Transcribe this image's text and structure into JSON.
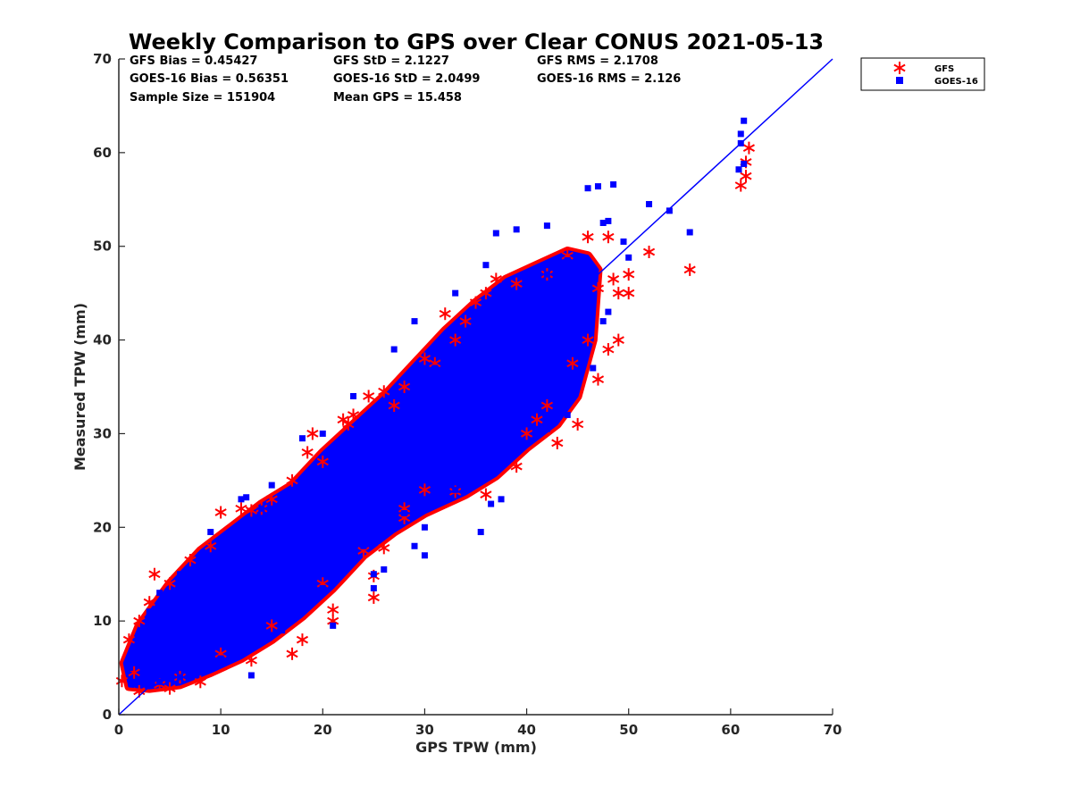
{
  "chart_data": {
    "type": "scatter",
    "title": "Weekly Comparison to GPS over Clear CONUS 2021-05-13",
    "xlabel": "GPS TPW (mm)",
    "ylabel": "Measured TPW (mm)",
    "xlim": [
      0,
      70
    ],
    "ylim": [
      0,
      70
    ],
    "xticks": [
      "0",
      "10",
      "20",
      "30",
      "40",
      "50",
      "60",
      "70"
    ],
    "yticks": [
      "0",
      "10",
      "20",
      "30",
      "40",
      "50",
      "60",
      "70"
    ],
    "grid": false,
    "legend_position": "outside top-right",
    "stats": [
      [
        "GFS Bias = 0.45427",
        "GFS StD = 2.1227",
        "GFS RMS = 2.1708"
      ],
      [
        "GOES-16 Bias = 0.56351",
        "GOES-16 StD = 2.0499",
        "GOES-16 RMS = 2.126"
      ],
      [
        "Sample Size = 151904",
        "Mean GPS = 15.458",
        ""
      ]
    ],
    "reference_line": {
      "name": "1:1",
      "x": [
        0,
        70
      ],
      "y": [
        0,
        70
      ],
      "color": "#0000ff"
    },
    "series": [
      {
        "name": "GFS",
        "marker": "asterisk",
        "color": "#ff0000",
        "points": [
          [
            0.3,
            3.6
          ],
          [
            3.5,
            15.0
          ],
          [
            10.0,
            21.6
          ],
          [
            12.0,
            22.0
          ],
          [
            13.0,
            21.8
          ],
          [
            14.0,
            22.0
          ],
          [
            18.5,
            28.0
          ],
          [
            19.0,
            30.0
          ],
          [
            22.0,
            31.5
          ],
          [
            22.5,
            31.0
          ],
          [
            23.0,
            32.0
          ],
          [
            24.5,
            34.0
          ],
          [
            26.0,
            34.5
          ],
          [
            30.0,
            38.0
          ],
          [
            32.0,
            42.8
          ],
          [
            34.0,
            42.0
          ],
          [
            36.0,
            45.0
          ],
          [
            37.0,
            46.5
          ],
          [
            46.0,
            51.0
          ],
          [
            48.0,
            51.0
          ],
          [
            52.0,
            49.4
          ],
          [
            50.0,
            45.0
          ],
          [
            50.0,
            47.0
          ],
          [
            49.0,
            40.0
          ],
          [
            48.0,
            39.0
          ],
          [
            47.0,
            35.8
          ],
          [
            45.0,
            31.0
          ],
          [
            43.0,
            29.0
          ],
          [
            39.0,
            26.5
          ],
          [
            36.0,
            23.5
          ],
          [
            33.0,
            23.8
          ],
          [
            28.0,
            22.0
          ],
          [
            26.0,
            17.8
          ],
          [
            25.0,
            14.8
          ],
          [
            25.0,
            12.5
          ],
          [
            21.0,
            11.2
          ],
          [
            21.0,
            10.0
          ],
          [
            18.0,
            8.0
          ],
          [
            17.0,
            6.5
          ],
          [
            13.0,
            5.8
          ],
          [
            8.0,
            3.5
          ],
          [
            5.0,
            2.8
          ],
          [
            2.0,
            2.5
          ],
          [
            56.0,
            47.5
          ],
          [
            61.0,
            56.5
          ],
          [
            61.5,
            57.5
          ],
          [
            61.8,
            60.5
          ],
          [
            61.5,
            59.0
          ],
          [
            47.0,
            45.5
          ],
          [
            48.5,
            46.5
          ],
          [
            49.0,
            45.0
          ],
          [
            46.0,
            40.0
          ],
          [
            44.5,
            37.5
          ],
          [
            42.0,
            33.0
          ],
          [
            41.0,
            31.5
          ],
          [
            40.0,
            30.0
          ],
          [
            30.0,
            24.0
          ],
          [
            28.0,
            21.0
          ],
          [
            24.0,
            17.5
          ],
          [
            20.0,
            14.0
          ],
          [
            15.0,
            9.5
          ],
          [
            10.0,
            6.5
          ],
          [
            6.0,
            4.0
          ],
          [
            4.0,
            3.2
          ],
          [
            1.5,
            4.5
          ],
          [
            1.0,
            8.0
          ],
          [
            2.0,
            10.0
          ],
          [
            3.0,
            12.0
          ],
          [
            5.0,
            14.0
          ],
          [
            7.0,
            16.5
          ],
          [
            9.0,
            18.0
          ],
          [
            15.0,
            23.0
          ],
          [
            17.0,
            25.0
          ],
          [
            20.0,
            27.0
          ],
          [
            27.0,
            33.0
          ],
          [
            28.0,
            35.0
          ],
          [
            31.0,
            37.5
          ],
          [
            33.0,
            40.0
          ],
          [
            35.0,
            44.0
          ],
          [
            39.0,
            46.0
          ],
          [
            42.0,
            47.0
          ],
          [
            44.0,
            49.0
          ]
        ]
      },
      {
        "name": "GOES-16",
        "marker": "square",
        "color": "#0000ff",
        "points": [
          [
            61.3,
            63.4
          ],
          [
            61.0,
            62.0
          ],
          [
            61.0,
            61.0
          ],
          [
            60.8,
            58.2
          ],
          [
            61.3,
            58.8
          ],
          [
            47.0,
            56.4
          ],
          [
            48.5,
            56.6
          ],
          [
            46.0,
            56.2
          ],
          [
            47.5,
            52.5
          ],
          [
            48.0,
            52.7
          ],
          [
            52.0,
            54.5
          ],
          [
            54.0,
            53.8
          ],
          [
            56.0,
            51.5
          ],
          [
            42.0,
            52.2
          ],
          [
            39.0,
            51.8
          ],
          [
            37.0,
            51.4
          ],
          [
            36.0,
            48.0
          ],
          [
            33.0,
            45.0
          ],
          [
            29.0,
            42.0
          ],
          [
            27.0,
            39.0
          ],
          [
            23.0,
            34.0
          ],
          [
            20.0,
            30.0
          ],
          [
            18.0,
            29.5
          ],
          [
            15.0,
            24.5
          ],
          [
            12.0,
            23.0
          ],
          [
            12.5,
            23.2
          ],
          [
            9.0,
            19.5
          ],
          [
            35.5,
            19.5
          ],
          [
            37.5,
            23.0
          ],
          [
            36.5,
            22.5
          ],
          [
            30.0,
            17.0
          ],
          [
            29.0,
            18.0
          ],
          [
            30.0,
            20.0
          ],
          [
            25.0,
            15.0
          ],
          [
            25.0,
            13.5
          ],
          [
            26.0,
            15.5
          ],
          [
            21.0,
            9.5
          ],
          [
            13.0,
            4.2
          ],
          [
            45.5,
            38.0
          ],
          [
            46.5,
            37.0
          ],
          [
            47.5,
            42.0
          ],
          [
            48.0,
            43.0
          ],
          [
            50.0,
            48.8
          ],
          [
            49.5,
            50.5
          ],
          [
            44.0,
            32.0
          ],
          [
            42.0,
            30.5
          ],
          [
            40.0,
            29.0
          ],
          [
            38.0,
            28.0
          ],
          [
            35.0,
            25.0
          ],
          [
            33.0,
            24.0
          ],
          [
            31.0,
            22.5
          ],
          [
            28.0,
            21.5
          ],
          [
            26.0,
            20.0
          ],
          [
            24.0,
            18.0
          ],
          [
            22.0,
            16.0
          ],
          [
            20.0,
            13.5
          ],
          [
            18.0,
            11.5
          ],
          [
            16.0,
            9.0
          ],
          [
            14.0,
            8.0
          ],
          [
            12.0,
            7.0
          ],
          [
            10.0,
            6.0
          ],
          [
            8.0,
            5.0
          ],
          [
            6.0,
            4.0
          ],
          [
            4.0,
            3.5
          ],
          [
            2.0,
            3.5
          ],
          [
            1.0,
            5.0
          ],
          [
            2.0,
            8.0
          ],
          [
            3.0,
            11.0
          ],
          [
            4.0,
            13.0
          ],
          [
            6.0,
            15.0
          ],
          [
            8.0,
            17.0
          ],
          [
            11.0,
            19.0
          ],
          [
            14.0,
            22.0
          ],
          [
            17.0,
            24.0
          ],
          [
            21.0,
            28.0
          ],
          [
            25.0,
            31.0
          ],
          [
            28.0,
            34.0
          ],
          [
            31.0,
            37.0
          ],
          [
            34.0,
            40.0
          ],
          [
            37.0,
            43.0
          ],
          [
            40.0,
            45.0
          ],
          [
            42.0,
            47.0
          ],
          [
            44.0,
            48.5
          ],
          [
            45.0,
            44.0
          ],
          [
            43.0,
            41.0
          ],
          [
            41.0,
            38.0
          ],
          [
            39.0,
            35.0
          ],
          [
            37.0,
            33.0
          ],
          [
            35.0,
            30.0
          ],
          [
            33.0,
            28.0
          ],
          [
            31.0,
            26.0
          ],
          [
            29.0,
            25.0
          ],
          [
            27.0,
            23.0
          ],
          [
            25.0,
            21.0
          ],
          [
            23.0,
            19.0
          ],
          [
            21.0,
            17.0
          ],
          [
            19.0,
            15.0
          ],
          [
            17.0,
            13.0
          ],
          [
            15.0,
            11.0
          ],
          [
            13.0,
            10.0
          ],
          [
            11.0,
            9.0
          ],
          [
            9.0,
            8.0
          ],
          [
            7.0,
            7.0
          ],
          [
            5.0,
            6.0
          ],
          [
            3.0,
            5.0
          ]
        ]
      }
    ],
    "density_band": {
      "description_color_gfs": "#ff0000",
      "description_color_goes": "#0000ff",
      "upper": [
        [
          0.5,
          5.5
        ],
        [
          2,
          9.5
        ],
        [
          5,
          14
        ],
        [
          8,
          17.5
        ],
        [
          11,
          20
        ],
        [
          14,
          22.5
        ],
        [
          17,
          24.5
        ],
        [
          20,
          28
        ],
        [
          23,
          31
        ],
        [
          26,
          34
        ],
        [
          29,
          37.5
        ],
        [
          32,
          41
        ],
        [
          35,
          44
        ],
        [
          38,
          46.5
        ],
        [
          41,
          48
        ],
        [
          44,
          49.5
        ],
        [
          46,
          49
        ],
        [
          47,
          47.5
        ]
      ],
      "lower": [
        [
          47,
          47.5
        ],
        [
          46.5,
          40
        ],
        [
          45,
          34
        ],
        [
          43,
          31
        ],
        [
          40,
          28.5
        ],
        [
          37,
          25.5
        ],
        [
          34,
          23.5
        ],
        [
          30,
          21.5
        ],
        [
          27,
          19.5
        ],
        [
          24,
          17
        ],
        [
          21,
          13.5
        ],
        [
          18,
          10.5
        ],
        [
          15,
          8
        ],
        [
          12,
          6
        ],
        [
          9,
          4.5
        ],
        [
          6,
          3.2
        ],
        [
          3,
          2.8
        ],
        [
          1,
          3.0
        ],
        [
          0.5,
          5.5
        ]
      ]
    }
  }
}
